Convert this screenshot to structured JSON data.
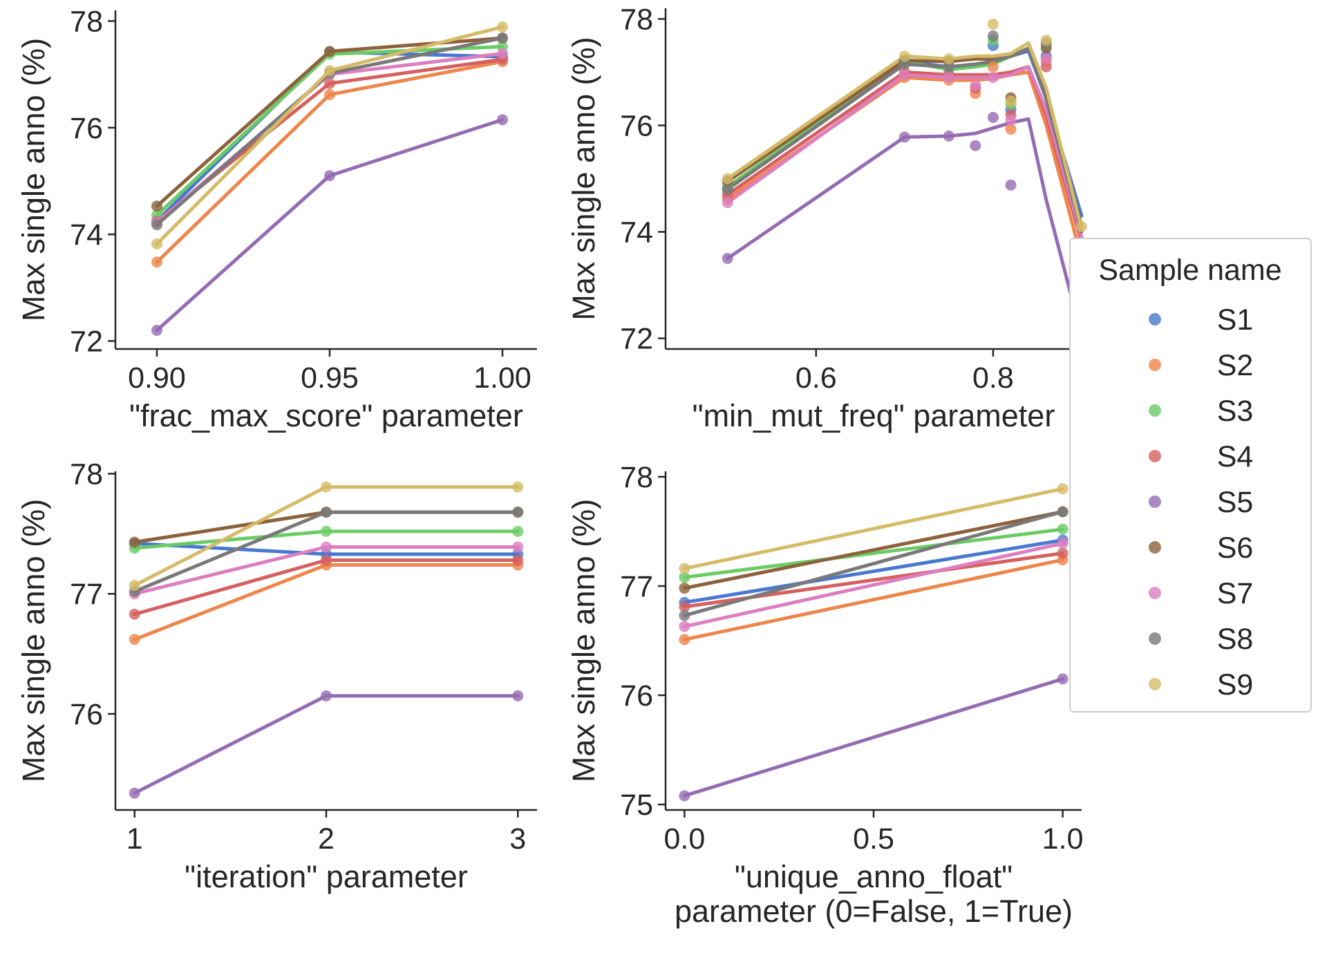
{
  "chart_data": [
    {
      "type": "line",
      "xlabel": "\"frac_max_score\" parameter",
      "ylabel": "Max single anno (%)",
      "xlim": [
        0.888,
        1.01
      ],
      "ylim": [
        71.85,
        78.2
      ],
      "xticks": [
        0.9,
        0.95,
        1.0
      ],
      "xtick_labels": [
        "0.90",
        "0.95",
        "1.00"
      ],
      "yticks": [
        72,
        74,
        76,
        78
      ],
      "series": [
        {
          "name": "S1",
          "points": [
            [
              0.9,
              74.25
            ],
            [
              0.95,
              77.42
            ],
            [
              1.0,
              77.33
            ]
          ]
        },
        {
          "name": "S2",
          "points": [
            [
              0.9,
              73.48
            ],
            [
              0.95,
              76.62
            ],
            [
              1.0,
              77.24
            ]
          ]
        },
        {
          "name": "S3",
          "points": [
            [
              0.9,
              74.36
            ],
            [
              0.95,
              77.38
            ],
            [
              1.0,
              77.52
            ]
          ]
        },
        {
          "name": "S4",
          "points": [
            [
              0.9,
              74.24
            ],
            [
              0.95,
              76.83
            ],
            [
              1.0,
              77.28
            ]
          ]
        },
        {
          "name": "S5",
          "points": [
            [
              0.9,
              72.2
            ],
            [
              0.95,
              75.1
            ],
            [
              1.0,
              76.15
            ]
          ]
        },
        {
          "name": "S6",
          "points": [
            [
              0.9,
              74.53
            ],
            [
              0.95,
              77.43
            ],
            [
              1.0,
              77.68
            ]
          ]
        },
        {
          "name": "S7",
          "points": [
            [
              0.9,
              74.22
            ],
            [
              0.95,
              77.0
            ],
            [
              1.0,
              77.39
            ]
          ]
        },
        {
          "name": "S8",
          "points": [
            [
              0.9,
              74.18
            ],
            [
              0.95,
              77.02
            ],
            [
              1.0,
              77.68
            ]
          ]
        },
        {
          "name": "S9",
          "points": [
            [
              0.9,
              73.82
            ],
            [
              0.95,
              77.07
            ],
            [
              1.0,
              77.89
            ]
          ]
        }
      ]
    },
    {
      "type": "line",
      "xlabel": "\"min_mut_freq\" parameter",
      "ylabel": "Max single anno (%)",
      "xlim": [
        0.43,
        0.9
      ],
      "ylim": [
        71.8,
        78.2
      ],
      "xticks": [
        0.6,
        0.8
      ],
      "xtick_labels": [
        "0.6",
        "0.8"
      ],
      "yticks": [
        72,
        74,
        76,
        78
      ],
      "series": [
        {
          "name": "S1",
          "points": [
            [
              0.5,
              74.8
            ],
            [
              0.7,
              77.2
            ],
            [
              0.75,
              77.1
            ],
            [
              0.78,
              77.15
            ],
            [
              0.8,
              77.2
            ],
            [
              0.82,
              77.3
            ],
            [
              0.84,
              77.4
            ],
            [
              0.86,
              76.5
            ],
            [
              0.9,
              74.3
            ]
          ]
        },
        {
          "name": "S2",
          "points": [
            [
              0.5,
              74.62
            ],
            [
              0.7,
              76.9
            ],
            [
              0.75,
              76.85
            ],
            [
              0.78,
              76.85
            ],
            [
              0.8,
              76.88
            ],
            [
              0.82,
              76.95
            ],
            [
              0.84,
              77.0
            ],
            [
              0.86,
              76.0
            ],
            [
              0.9,
              73.5
            ]
          ]
        },
        {
          "name": "S3",
          "points": [
            [
              0.5,
              74.85
            ],
            [
              0.7,
              77.2
            ],
            [
              0.75,
              77.05
            ],
            [
              0.78,
              77.1
            ],
            [
              0.8,
              77.15
            ],
            [
              0.82,
              77.3
            ],
            [
              0.84,
              77.45
            ],
            [
              0.86,
              76.6
            ],
            [
              0.9,
              74.05
            ]
          ]
        },
        {
          "name": "S4",
          "points": [
            [
              0.5,
              74.7
            ],
            [
              0.7,
              77.0
            ],
            [
              0.75,
              76.95
            ],
            [
              0.78,
              76.95
            ],
            [
              0.8,
              76.95
            ],
            [
              0.82,
              77.0
            ],
            [
              0.84,
              77.1
            ],
            [
              0.86,
              76.2
            ],
            [
              0.9,
              73.8
            ]
          ]
        },
        {
          "name": "S5",
          "points": [
            [
              0.5,
              73.5
            ],
            [
              0.7,
              75.78
            ],
            [
              0.75,
              75.8
            ],
            [
              0.78,
              75.85
            ],
            [
              0.8,
              75.95
            ],
            [
              0.82,
              76.05
            ],
            [
              0.84,
              76.12
            ],
            [
              0.86,
              74.6
            ],
            [
              0.9,
              72.05
            ]
          ]
        },
        {
          "name": "S6",
          "points": [
            [
              0.5,
              74.95
            ],
            [
              0.7,
              77.22
            ],
            [
              0.75,
              77.2
            ],
            [
              0.78,
              77.25
            ],
            [
              0.8,
              77.25
            ],
            [
              0.82,
              77.3
            ],
            [
              0.84,
              77.45
            ],
            [
              0.86,
              76.6
            ],
            [
              0.9,
              74.1
            ]
          ]
        },
        {
          "name": "S7",
          "points": [
            [
              0.5,
              74.55
            ],
            [
              0.7,
              76.95
            ],
            [
              0.75,
              76.9
            ],
            [
              0.78,
              76.9
            ],
            [
              0.8,
              76.9
            ],
            [
              0.82,
              76.95
            ],
            [
              0.84,
              77.1
            ],
            [
              0.86,
              76.3
            ],
            [
              0.9,
              73.9
            ]
          ]
        },
        {
          "name": "S8",
          "points": [
            [
              0.5,
              74.8
            ],
            [
              0.7,
              77.15
            ],
            [
              0.75,
              77.1
            ],
            [
              0.78,
              77.15
            ],
            [
              0.8,
              77.2
            ],
            [
              0.82,
              77.3
            ],
            [
              0.84,
              77.45
            ],
            [
              0.86,
              76.5
            ],
            [
              0.9,
              74.0
            ]
          ]
        },
        {
          "name": "S9",
          "points": [
            [
              0.5,
              75.0
            ],
            [
              0.7,
              77.3
            ],
            [
              0.75,
              77.25
            ],
            [
              0.78,
              77.3
            ],
            [
              0.8,
              77.3
            ],
            [
              0.82,
              77.35
            ],
            [
              0.84,
              77.55
            ],
            [
              0.86,
              76.7
            ],
            [
              0.9,
              74.05
            ]
          ]
        }
      ],
      "scatter_points": [
        {
          "series": "S1",
          "points": [
            [
              0.8,
              77.5
            ],
            [
              0.82,
              76.3
            ],
            [
              0.86,
              77.3
            ]
          ]
        },
        {
          "series": "S2",
          "points": [
            [
              0.78,
              76.6
            ],
            [
              0.8,
              77.1
            ],
            [
              0.82,
              75.93
            ],
            [
              0.86,
              77.2
            ],
            [
              0.9,
              73.45
            ]
          ]
        },
        {
          "series": "S3",
          "points": [
            [
              0.8,
              77.6
            ],
            [
              0.82,
              76.4
            ],
            [
              0.86,
              77.5
            ]
          ]
        },
        {
          "series": "S4",
          "points": [
            [
              0.78,
              76.7
            ],
            [
              0.82,
              76.2
            ],
            [
              0.86,
              77.1
            ]
          ]
        },
        {
          "series": "S5",
          "points": [
            [
              0.78,
              75.62
            ],
            [
              0.8,
              76.15
            ],
            [
              0.82,
              74.88
            ],
            [
              0.9,
              72.05
            ]
          ]
        },
        {
          "series": "S6",
          "points": [
            [
              0.82,
              76.52
            ],
            [
              0.86,
              77.45
            ]
          ]
        },
        {
          "series": "S7",
          "points": [
            [
              0.78,
              76.75
            ],
            [
              0.8,
              76.9
            ],
            [
              0.82,
              76.1
            ],
            [
              0.86,
              77.25
            ]
          ]
        },
        {
          "series": "S8",
          "points": [
            [
              0.8,
              77.68
            ],
            [
              0.86,
              77.55
            ]
          ]
        },
        {
          "series": "S9",
          "points": [
            [
              0.8,
              77.9
            ],
            [
              0.82,
              76.45
            ],
            [
              0.86,
              77.6
            ],
            [
              0.9,
              74.1
            ]
          ]
        }
      ]
    },
    {
      "type": "line",
      "xlabel": "\"iteration\" parameter",
      "ylabel": "Max single anno (%)",
      "xlim": [
        0.9,
        3.1
      ],
      "ylim": [
        75.2,
        78.02
      ],
      "xticks": [
        1,
        2,
        3
      ],
      "xtick_labels": [
        "1",
        "2",
        "3"
      ],
      "yticks": [
        76,
        77,
        78
      ],
      "series": [
        {
          "name": "S1",
          "points": [
            [
              1,
              77.42
            ],
            [
              2,
              77.33
            ],
            [
              3,
              77.33
            ]
          ]
        },
        {
          "name": "S2",
          "points": [
            [
              1,
              76.62
            ],
            [
              2,
              77.24
            ],
            [
              3,
              77.24
            ]
          ]
        },
        {
          "name": "S3",
          "points": [
            [
              1,
              77.38
            ],
            [
              2,
              77.52
            ],
            [
              3,
              77.52
            ]
          ]
        },
        {
          "name": "S4",
          "points": [
            [
              1,
              76.83
            ],
            [
              2,
              77.28
            ],
            [
              3,
              77.28
            ]
          ]
        },
        {
          "name": "S5",
          "points": [
            [
              1,
              75.34
            ],
            [
              2,
              76.15
            ],
            [
              3,
              76.15
            ]
          ]
        },
        {
          "name": "S6",
          "points": [
            [
              1,
              77.43
            ],
            [
              2,
              77.68
            ],
            [
              3,
              77.68
            ]
          ]
        },
        {
          "name": "S7",
          "points": [
            [
              1,
              77.0
            ],
            [
              2,
              77.39
            ],
            [
              3,
              77.39
            ]
          ]
        },
        {
          "name": "S8",
          "points": [
            [
              1,
              77.02
            ],
            [
              2,
              77.68
            ],
            [
              3,
              77.68
            ]
          ]
        },
        {
          "name": "S9",
          "points": [
            [
              1,
              77.07
            ],
            [
              2,
              77.89
            ],
            [
              3,
              77.89
            ]
          ]
        }
      ]
    },
    {
      "type": "line",
      "xlabel_line1": "\"unique_anno_float\"",
      "xlabel_line2": "parameter (0=False, 1=True)",
      "ylabel": "Max single anno (%)",
      "xlim": [
        -0.05,
        1.05
      ],
      "ylim": [
        74.95,
        78.05
      ],
      "xticks": [
        0.0,
        0.5,
        1.0
      ],
      "xtick_labels": [
        "0.0",
        "0.5",
        "1.0"
      ],
      "yticks": [
        75,
        76,
        77,
        78
      ],
      "series": [
        {
          "name": "S1",
          "points": [
            [
              0,
              76.85
            ],
            [
              1,
              77.42
            ]
          ]
        },
        {
          "name": "S2",
          "points": [
            [
              0,
              76.51
            ],
            [
              1,
              77.24
            ]
          ]
        },
        {
          "name": "S3",
          "points": [
            [
              0,
              77.08
            ],
            [
              1,
              77.52
            ]
          ]
        },
        {
          "name": "S4",
          "points": [
            [
              0,
              76.81
            ],
            [
              1,
              77.3
            ]
          ]
        },
        {
          "name": "S5",
          "points": [
            [
              0,
              75.08
            ],
            [
              1,
              76.15
            ]
          ]
        },
        {
          "name": "S6",
          "points": [
            [
              0,
              76.98
            ],
            [
              1,
              77.68
            ]
          ]
        },
        {
          "name": "S7",
          "points": [
            [
              0,
              76.63
            ],
            [
              1,
              77.39
            ]
          ]
        },
        {
          "name": "S8",
          "points": [
            [
              0,
              76.73
            ],
            [
              1,
              77.68
            ]
          ]
        },
        {
          "name": "S9",
          "points": [
            [
              0,
              77.16
            ],
            [
              1,
              77.89
            ]
          ]
        }
      ]
    }
  ],
  "legend": {
    "title": "Sample name",
    "entries": [
      "S1",
      "S2",
      "S3",
      "S4",
      "S5",
      "S6",
      "S7",
      "S8",
      "S9"
    ],
    "colors": [
      "#4878d0",
      "#ee854a",
      "#6acc64",
      "#d65f5f",
      "#956cb4",
      "#8c613c",
      "#dc7ec0",
      "#797979",
      "#d5bb67"
    ],
    "placement": "right"
  }
}
